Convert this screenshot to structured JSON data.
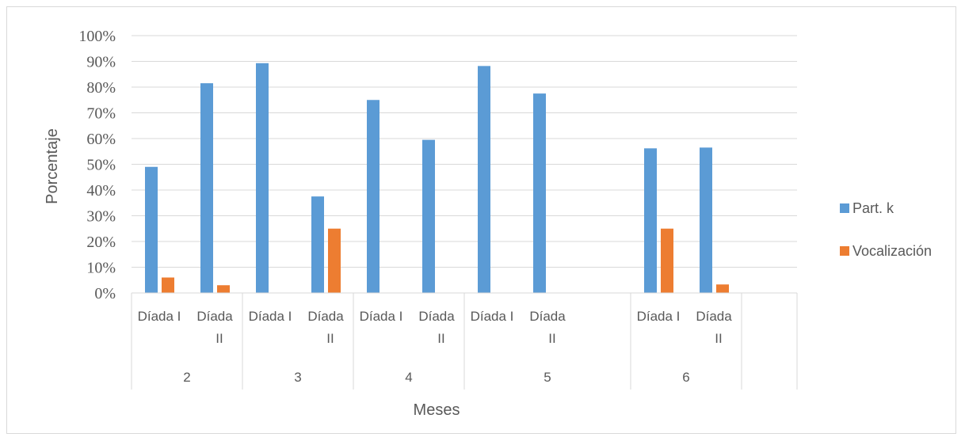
{
  "chart_data": {
    "type": "bar",
    "ylabel": "Porcentaje",
    "xlabel": "Meses",
    "ylim": [
      0,
      100
    ],
    "y_ticks": [
      "0%",
      "10%",
      "20%",
      "30%",
      "40%",
      "50%",
      "60%",
      "70%",
      "80%",
      "90%",
      "100%"
    ],
    "y_tick_values": [
      0,
      10,
      20,
      30,
      40,
      50,
      60,
      70,
      80,
      90,
      100
    ],
    "categories": [
      {
        "label": [
          "Díada I"
        ],
        "group": "2"
      },
      {
        "label": [
          "Díada",
          "II"
        ],
        "group": "2"
      },
      {
        "label": [
          "Díada I"
        ],
        "group": "3"
      },
      {
        "label": [
          "Díada",
          "II"
        ],
        "group": "3"
      },
      {
        "label": [
          "Díada I"
        ],
        "group": "4"
      },
      {
        "label": [
          "Díada",
          "II"
        ],
        "group": "4"
      },
      {
        "label": [
          "Díada I"
        ],
        "group": "5"
      },
      {
        "label": [
          "Díada",
          "II"
        ],
        "group": "5"
      },
      {
        "label": [],
        "group": "5"
      },
      {
        "label": [
          "Díada I"
        ],
        "group": "6"
      },
      {
        "label": [
          "Díada",
          "II"
        ],
        "group": "6"
      },
      {
        "label": [],
        "group": ""
      }
    ],
    "groups": [
      {
        "label": "2",
        "span": 2
      },
      {
        "label": "3",
        "span": 2
      },
      {
        "label": "4",
        "span": 2
      },
      {
        "label": "5",
        "span": 3
      },
      {
        "label": "6",
        "span": 2
      },
      {
        "label": "",
        "span": 1
      }
    ],
    "series": [
      {
        "name": "Part. k",
        "color": "#5b9bd5",
        "values": [
          49,
          81.5,
          89.3,
          37.5,
          75,
          59.5,
          88.2,
          77.5,
          null,
          56.2,
          56.5,
          null
        ]
      },
      {
        "name": "Vocalización",
        "color": "#ed7d31",
        "values": [
          6,
          3,
          0,
          25,
          0,
          0,
          0,
          0,
          null,
          25,
          3.3,
          null
        ]
      }
    ],
    "grid": true,
    "legend_position": "right"
  }
}
